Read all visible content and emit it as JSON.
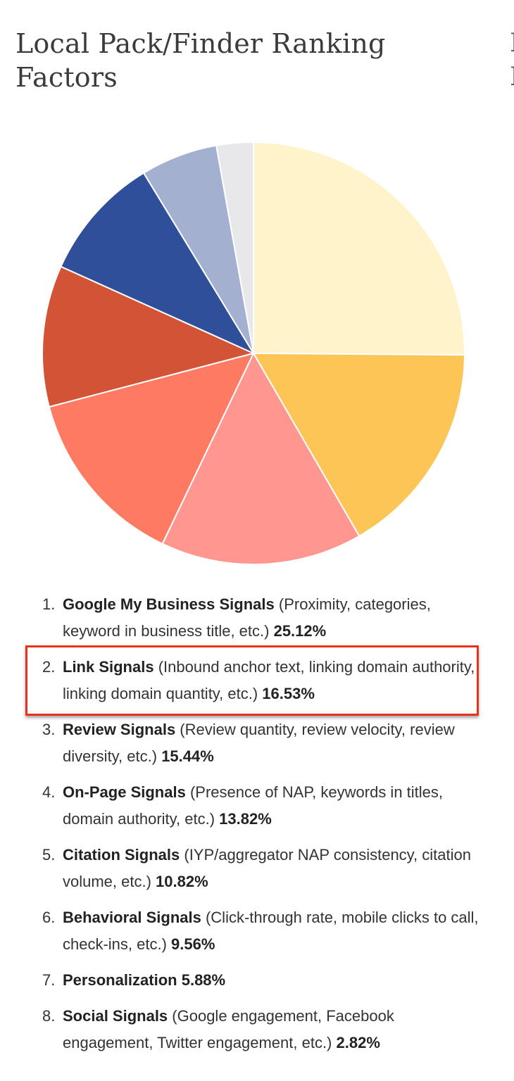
{
  "title": "Local Pack/Finder Ranking Factors",
  "highlight_color": "#e8321c",
  "chart_data": {
    "type": "pie",
    "categories": [
      "Google My Business Signals",
      "Link Signals",
      "Review Signals",
      "On-Page Signals",
      "Citation Signals",
      "Behavioral Signals",
      "Personalization",
      "Social Signals"
    ],
    "values": [
      25.12,
      16.53,
      15.44,
      13.82,
      10.82,
      9.56,
      5.88,
      2.82
    ],
    "colors": [
      "#fff3cc",
      "#fcc556",
      "#ff9690",
      "#ff7a62",
      "#d35336",
      "#304f9a",
      "#a3b0cf",
      "#e8e8ea"
    ],
    "start": "12 o'clock",
    "direction": "clockwise",
    "legend": "numbered list below chart"
  },
  "factors": [
    {
      "num": "1.",
      "name": "Google My Business Signals",
      "desc": " (Proximity, categories, keyword in business title, etc.) ",
      "pct": "25.12%"
    },
    {
      "num": "2.",
      "name": "Link Signals",
      "desc": " (Inbound anchor text, linking domain authority, linking domain quantity, etc.) ",
      "pct": "16.53%"
    },
    {
      "num": "3.",
      "name": "Review Signals",
      "desc": " (Review quantity, review velocity, review diversity, etc.) ",
      "pct": "15.44%"
    },
    {
      "num": "4.",
      "name": "On-Page Signals",
      "desc": " (Presence of NAP, keywords in titles, domain authority, etc.) ",
      "pct": "13.82%"
    },
    {
      "num": "5.",
      "name": "Citation Signals",
      "desc": " (IYP/aggregator NAP consistency, citation volume, etc.) ",
      "pct": "10.82%"
    },
    {
      "num": "6.",
      "name": "Behavioral Signals",
      "desc": " (Click-through rate, mobile clicks to call, check-ins, etc.) ",
      "pct": "9.56%"
    },
    {
      "num": "7.",
      "name": "Personalization",
      "desc": "  ",
      "pct": "5.88%"
    },
    {
      "num": "8.",
      "name": "Social Signals",
      "desc": " (Google engagement, Facebook engagement, Twitter engagement, etc.) ",
      "pct": "2.82%"
    }
  ]
}
